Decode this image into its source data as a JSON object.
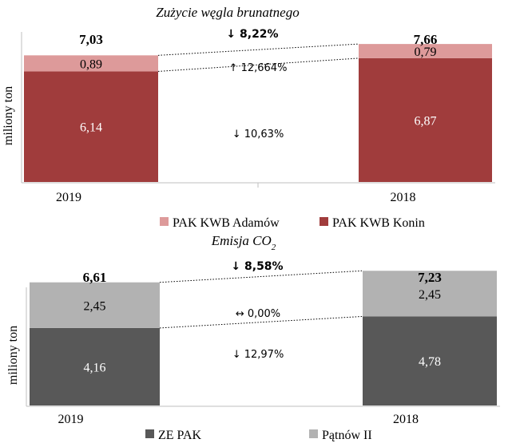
{
  "chart_data": [
    {
      "type": "bar",
      "stacked": true,
      "title": "Zużycie węgla brunatnego",
      "ylabel": "miliony ton",
      "categories": [
        "2019",
        "2018"
      ],
      "series": [
        {
          "name": "PAK KWB Konin",
          "values": [
            6.14,
            6.87
          ],
          "labels": [
            "6,14",
            "6,87"
          ],
          "color": "#a03c3c",
          "label_color": "#ffffff"
        },
        {
          "name": "PAK KWB Adamów",
          "values": [
            0.89,
            0.79
          ],
          "labels": [
            "0,89",
            "0,79"
          ],
          "color": "#dd9a9a",
          "label_color": "#000000"
        }
      ],
      "totals": [
        "7,03",
        "7,66"
      ],
      "total_change": {
        "arrow": "↓",
        "text": "8,22%"
      },
      "series_changes": [
        {
          "arrow": "↓",
          "text": "10,63%"
        },
        {
          "arrow": "↑",
          "text": "12,664%"
        }
      ],
      "legend": [
        "PAK KWB Adamów",
        "PAK KWB Konin"
      ],
      "ylim": [
        0,
        8.2
      ]
    },
    {
      "type": "bar",
      "stacked": true,
      "title": "Emisja CO",
      "title_sub": "2",
      "ylabel": "miliony ton",
      "categories": [
        "2019",
        "2018"
      ],
      "series": [
        {
          "name": "ZE PAK",
          "values": [
            4.16,
            4.78
          ],
          "labels": [
            "4,16",
            "4,78"
          ],
          "color": "#585858",
          "label_color": "#ffffff"
        },
        {
          "name": "Pątnów II",
          "values": [
            2.45,
            2.45
          ],
          "labels": [
            "2,45",
            "2,45"
          ],
          "color": "#b2b2b2",
          "label_color": "#000000"
        }
      ],
      "totals": [
        "6,61",
        "7,23"
      ],
      "total_change": {
        "arrow": "↓",
        "text": "8,58%"
      },
      "series_changes": [
        {
          "arrow": "↓",
          "text": "12,97%"
        },
        {
          "arrow": "↔",
          "text": "0,00%"
        }
      ],
      "legend": [
        "ZE PAK",
        "Pątnów II"
      ],
      "ylim": [
        0,
        7.6
      ]
    }
  ]
}
